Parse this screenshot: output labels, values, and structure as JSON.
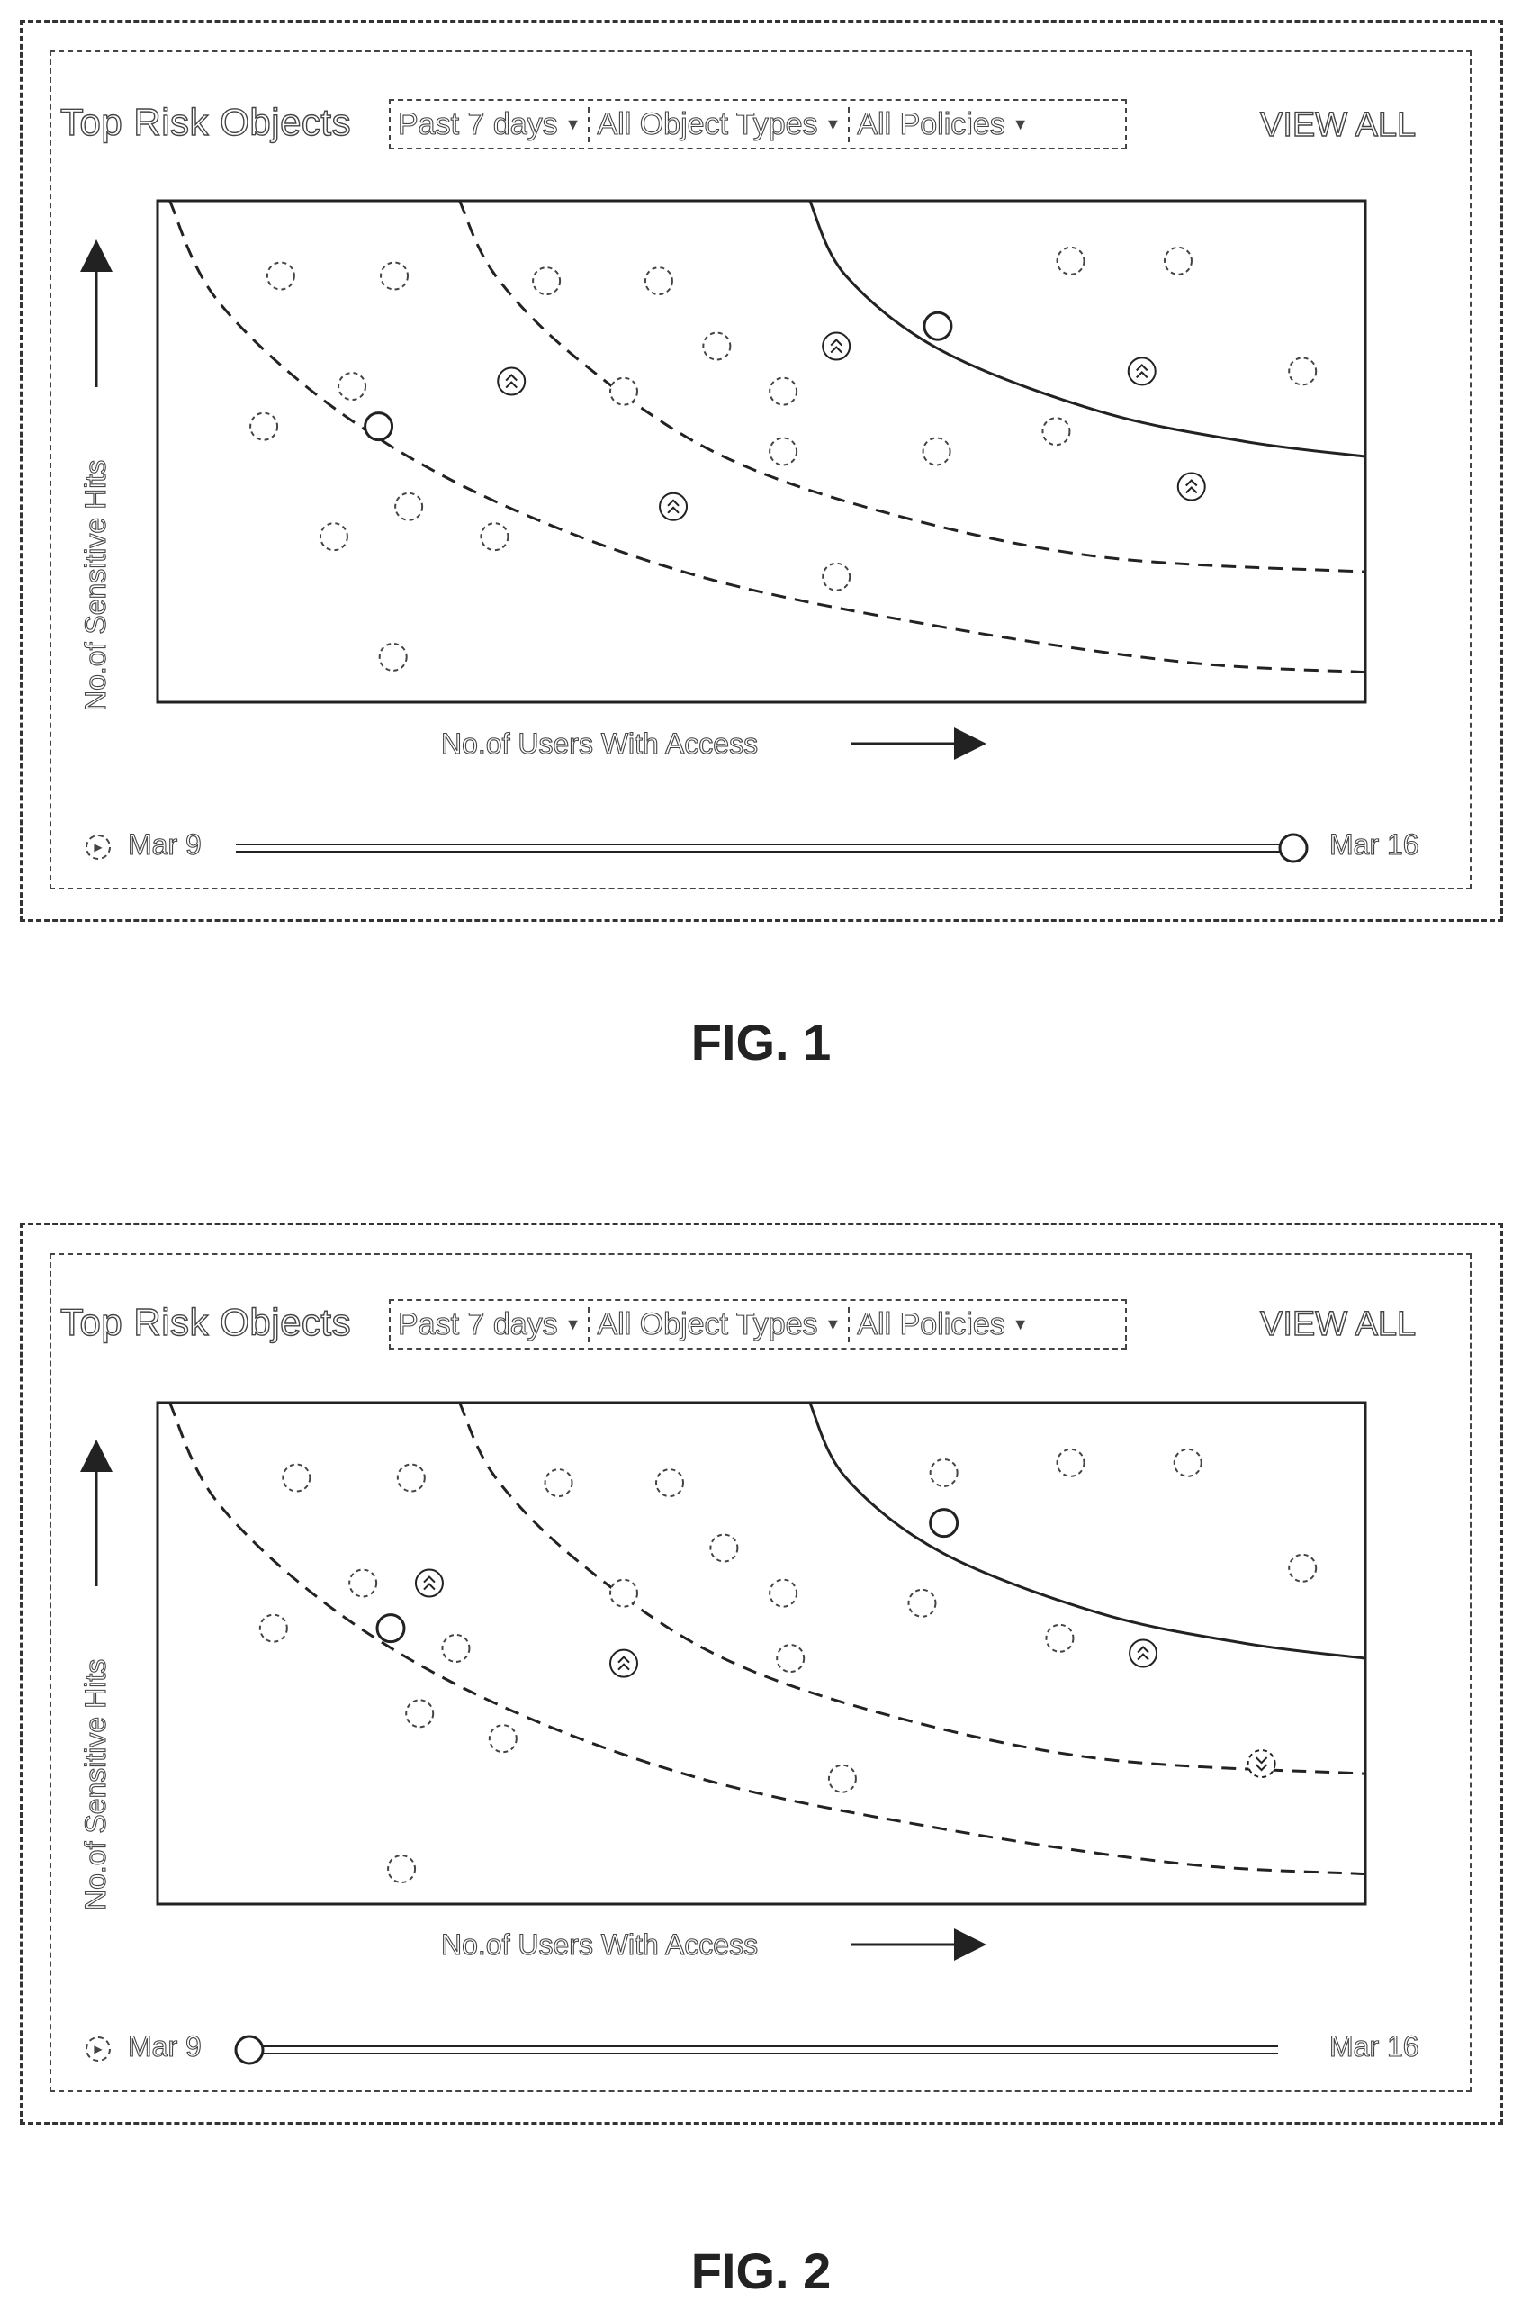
{
  "figures": [
    {
      "caption": "FIG. 1",
      "widget": {
        "title": "Top Risk Objects",
        "filters": [
          {
            "label": "Past 7 days",
            "icon": "dropdown-triangle-icon"
          },
          {
            "label": "All Object Types",
            "icon": "dropdown-triangle-icon"
          },
          {
            "label": "All Policies",
            "icon": "dropdown-triangle-icon"
          }
        ],
        "view_all": "VIEW ALL",
        "y_axis_label": "No.of Sensitive Hits",
        "x_axis_label": "No.of Users With Access",
        "timeline": {
          "start_label": "Mar 9",
          "end_label": "Mar 16",
          "play_icon": "play-icon",
          "position": 1.0
        }
      },
      "chart_data": {
        "type": "scatter",
        "xlim": [
          0,
          100
        ],
        "ylim": [
          0,
          100
        ],
        "grid": false,
        "risk_zone_boundaries": [
          {
            "style": "dashed",
            "points": [
              [
                1,
                100
              ],
              [
                5,
                80
              ],
              [
                15,
                58
              ],
              [
                28,
                40
              ],
              [
                45,
                25
              ],
              [
                65,
                15
              ],
              [
                85,
                8
              ],
              [
                100,
                6
              ]
            ]
          },
          {
            "style": "dashed",
            "points": [
              [
                25,
                100
              ],
              [
                28,
                85
              ],
              [
                35,
                68
              ],
              [
                46,
                50
              ],
              [
                60,
                38
              ],
              [
                78,
                29
              ],
              [
                100,
                26
              ]
            ]
          },
          {
            "style": "solid",
            "points": [
              [
                54,
                100
              ],
              [
                57,
                85
              ],
              [
                65,
                70
              ],
              [
                78,
                58
              ],
              [
                90,
                52
              ],
              [
                100,
                49
              ]
            ]
          }
        ],
        "point_markers": {
          "normal": "dashed-circle",
          "highlighted": "solid-circle",
          "rising": "double-chevron-up-icon"
        },
        "points": [
          {
            "x": 10.2,
            "y": 85,
            "kind": "normal"
          },
          {
            "x": 19.6,
            "y": 85,
            "kind": "normal"
          },
          {
            "x": 32.2,
            "y": 84,
            "kind": "normal"
          },
          {
            "x": 41.5,
            "y": 84,
            "kind": "normal"
          },
          {
            "x": 75.6,
            "y": 88,
            "kind": "normal"
          },
          {
            "x": 84.5,
            "y": 88,
            "kind": "normal"
          },
          {
            "x": 46.3,
            "y": 71,
            "kind": "normal"
          },
          {
            "x": 56.2,
            "y": 71,
            "kind": "rising"
          },
          {
            "x": 64.6,
            "y": 75,
            "kind": "highlighted"
          },
          {
            "x": 16.1,
            "y": 63,
            "kind": "normal"
          },
          {
            "x": 29.3,
            "y": 64,
            "kind": "rising"
          },
          {
            "x": 38.6,
            "y": 62,
            "kind": "normal"
          },
          {
            "x": 51.8,
            "y": 62,
            "kind": "normal"
          },
          {
            "x": 81.5,
            "y": 66,
            "kind": "rising"
          },
          {
            "x": 94.8,
            "y": 66,
            "kind": "normal"
          },
          {
            "x": 8.8,
            "y": 55,
            "kind": "normal"
          },
          {
            "x": 18.3,
            "y": 55,
            "kind": "highlighted"
          },
          {
            "x": 51.8,
            "y": 50,
            "kind": "normal"
          },
          {
            "x": 64.5,
            "y": 50,
            "kind": "normal"
          },
          {
            "x": 74.4,
            "y": 54,
            "kind": "normal"
          },
          {
            "x": 85.6,
            "y": 43,
            "kind": "rising"
          },
          {
            "x": 20.8,
            "y": 39,
            "kind": "normal"
          },
          {
            "x": 42.7,
            "y": 39,
            "kind": "rising"
          },
          {
            "x": 14.6,
            "y": 33,
            "kind": "normal"
          },
          {
            "x": 27.9,
            "y": 33,
            "kind": "normal"
          },
          {
            "x": 56.2,
            "y": 25,
            "kind": "normal"
          },
          {
            "x": 19.5,
            "y": 9,
            "kind": "normal"
          }
        ]
      }
    },
    {
      "caption": "FIG. 2",
      "widget": {
        "title": "Top Risk Objects",
        "filters": [
          {
            "label": "Past 7 days",
            "icon": "dropdown-triangle-icon"
          },
          {
            "label": "All Object Types",
            "icon": "dropdown-triangle-icon"
          },
          {
            "label": "All Policies",
            "icon": "dropdown-triangle-icon"
          }
        ],
        "view_all": "VIEW ALL",
        "y_axis_label": "No.of Sensitive Hits",
        "x_axis_label": "No.of Users With Access",
        "timeline": {
          "start_label": "Mar 9",
          "end_label": "Mar 16",
          "play_icon": "play-icon",
          "position": 0.0
        }
      },
      "chart_data": {
        "type": "scatter",
        "xlim": [
          0,
          100
        ],
        "ylim": [
          0,
          100
        ],
        "grid": false,
        "risk_zone_boundaries": [
          {
            "style": "dashed",
            "points": [
              [
                1,
                100
              ],
              [
                5,
                80
              ],
              [
                15,
                58
              ],
              [
                28,
                40
              ],
              [
                45,
                25
              ],
              [
                65,
                15
              ],
              [
                85,
                8
              ],
              [
                100,
                6
              ]
            ]
          },
          {
            "style": "dashed",
            "points": [
              [
                25,
                100
              ],
              [
                28,
                85
              ],
              [
                35,
                68
              ],
              [
                46,
                50
              ],
              [
                60,
                38
              ],
              [
                78,
                29
              ],
              [
                100,
                26
              ]
            ]
          },
          {
            "style": "solid",
            "points": [
              [
                54,
                100
              ],
              [
                57,
                85
              ],
              [
                65,
                70
              ],
              [
                78,
                58
              ],
              [
                90,
                52
              ],
              [
                100,
                49
              ]
            ]
          }
        ],
        "point_markers": {
          "normal": "dashed-circle",
          "highlighted": "solid-circle",
          "rising": "double-chevron-up-icon",
          "falling": "double-chevron-down-icon"
        },
        "points": [
          {
            "x": 11.5,
            "y": 85,
            "kind": "normal"
          },
          {
            "x": 21,
            "y": 85,
            "kind": "normal"
          },
          {
            "x": 33.2,
            "y": 84,
            "kind": "normal"
          },
          {
            "x": 42.4,
            "y": 84,
            "kind": "normal"
          },
          {
            "x": 65.1,
            "y": 86,
            "kind": "normal"
          },
          {
            "x": 75.6,
            "y": 88,
            "kind": "normal"
          },
          {
            "x": 85.3,
            "y": 88,
            "kind": "normal"
          },
          {
            "x": 65.1,
            "y": 76,
            "kind": "highlighted"
          },
          {
            "x": 46.9,
            "y": 71,
            "kind": "normal"
          },
          {
            "x": 17,
            "y": 64,
            "kind": "normal"
          },
          {
            "x": 22.5,
            "y": 64,
            "kind": "rising"
          },
          {
            "x": 38.6,
            "y": 62,
            "kind": "normal"
          },
          {
            "x": 51.8,
            "y": 62,
            "kind": "normal"
          },
          {
            "x": 63.3,
            "y": 60,
            "kind": "normal"
          },
          {
            "x": 94.8,
            "y": 67,
            "kind": "normal"
          },
          {
            "x": 9.6,
            "y": 55,
            "kind": "normal"
          },
          {
            "x": 19.3,
            "y": 55,
            "kind": "highlighted"
          },
          {
            "x": 24.7,
            "y": 51,
            "kind": "normal"
          },
          {
            "x": 38.6,
            "y": 48,
            "kind": "rising"
          },
          {
            "x": 52.4,
            "y": 49,
            "kind": "normal"
          },
          {
            "x": 74.7,
            "y": 53,
            "kind": "normal"
          },
          {
            "x": 81.6,
            "y": 50,
            "kind": "rising"
          },
          {
            "x": 21.7,
            "y": 38,
            "kind": "normal"
          },
          {
            "x": 28.6,
            "y": 33,
            "kind": "normal"
          },
          {
            "x": 91.4,
            "y": 28,
            "kind": "falling"
          },
          {
            "x": 56.7,
            "y": 25,
            "kind": "normal"
          },
          {
            "x": 20.2,
            "y": 7,
            "kind": "normal"
          }
        ]
      }
    }
  ]
}
